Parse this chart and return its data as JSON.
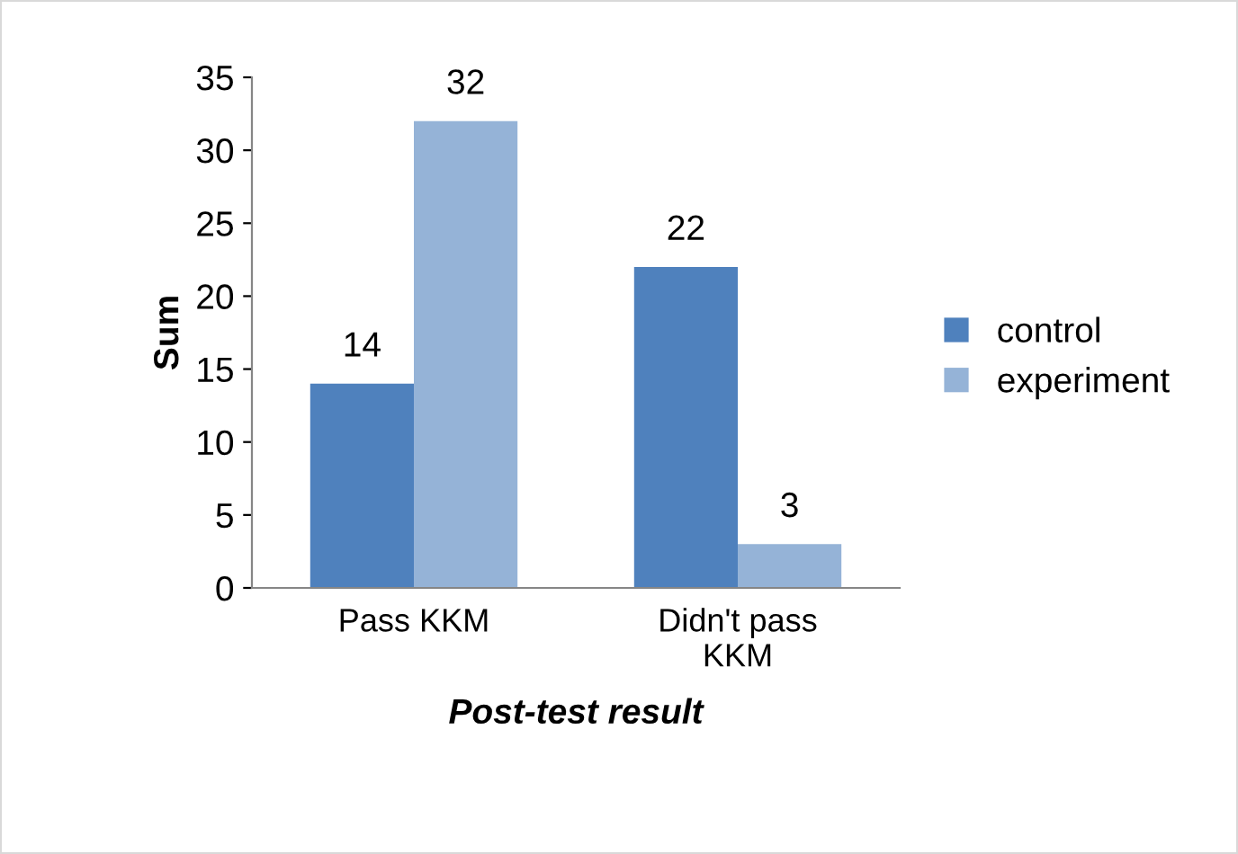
{
  "chart_data": {
    "type": "bar",
    "xlabel": "Post-test result",
    "ylabel": "Sum",
    "categories": [
      "Pass KKM",
      "Didn't pass\nKKM"
    ],
    "series": [
      {
        "name": "control",
        "color": "#4f81bd",
        "values": [
          14,
          22
        ]
      },
      {
        "name": "experiment",
        "color": "#95b3d7",
        "values": [
          32,
          3
        ]
      }
    ],
    "ylim": [
      0,
      35
    ],
    "yticks": [
      0,
      5,
      10,
      15,
      20,
      25,
      30,
      35
    ],
    "grid": false,
    "legend": "right",
    "data_labels": true
  }
}
